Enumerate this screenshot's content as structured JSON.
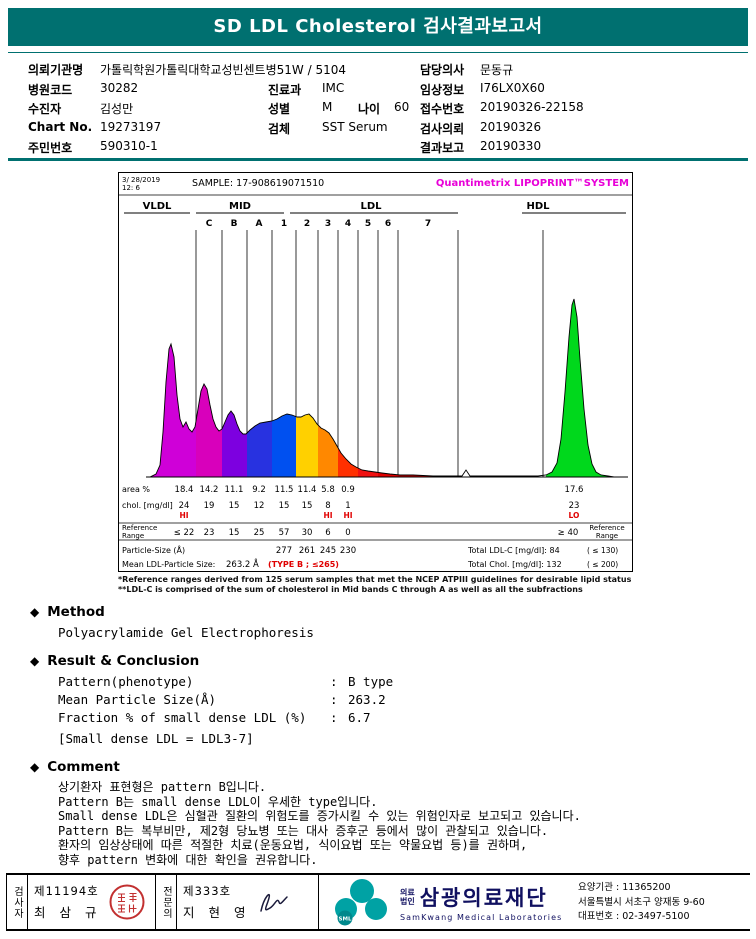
{
  "header": {
    "title": "SD LDL Cholesterol 검사결과보고서"
  },
  "info": {
    "fields": [
      {
        "id": "org",
        "label": "의뢰기관명",
        "value": "가톨릭학원가톨릭대학교성빈센트병51W / 5104"
      },
      {
        "id": "hospital_code",
        "label": "병원코드",
        "value": "30282"
      },
      {
        "id": "patient",
        "label": "수진자",
        "value": "김성만"
      },
      {
        "id": "chart_no",
        "label": "Chart No.",
        "value": "19273197"
      },
      {
        "id": "resident_no",
        "label": "주민번호",
        "value": "590310-1"
      },
      {
        "id": "dept",
        "label": "진료과",
        "value": "IMC"
      },
      {
        "id": "sex",
        "label": "성별",
        "value": "M"
      },
      {
        "id": "age",
        "label": "나이",
        "value": "60"
      },
      {
        "id": "specimen",
        "label": "검체",
        "value": "SST Serum"
      },
      {
        "id": "doctor",
        "label": "담당의사",
        "value": "문동규"
      },
      {
        "id": "clinical_info",
        "label": "임상정보",
        "value": "I76LX0X60"
      },
      {
        "id": "receipt_no",
        "label": "접수번호",
        "value": "20190326-22158"
      },
      {
        "id": "request_date",
        "label": "검사의뢰",
        "value": "20190326"
      },
      {
        "id": "report_date",
        "label": "결과보고",
        "value": "20190330"
      }
    ]
  },
  "chart": {
    "datetime_line1": "3/ 28/2019",
    "datetime_line2": "12: 6",
    "sample_label": "SAMPLE:",
    "sample_value": "17-908619071510",
    "brand": "Quantimetrix LIPOPRINT™SYSTEM",
    "bands": {
      "groups": [
        "VLDL",
        "MID",
        "LDL",
        "HDL"
      ],
      "mid_sub": [
        "C",
        "B",
        "A"
      ],
      "ldl_sub": [
        "1",
        "2",
        "3",
        "4",
        "5",
        "6",
        "7"
      ]
    },
    "rows": {
      "area_label": "area %",
      "area_values": [
        "18.4",
        "14.2",
        "11.1",
        "9.2",
        "11.5",
        "11.4",
        "5.8",
        "0.9"
      ],
      "area_hdl": "17.6",
      "chol_label": "chol. [mg/dl]",
      "chol_values": [
        "24",
        "19",
        "15",
        "12",
        "15",
        "15",
        "8",
        "1"
      ],
      "chol_hdl": "23",
      "chol_flags": [
        "HI",
        "",
        "",
        "",
        "",
        "",
        "HI",
        "HI"
      ],
      "chol_hdl_flag": "LO",
      "ref_label": "Reference Range",
      "ref_values": [
        "≤ 22",
        "23",
        "15",
        "25",
        "57",
        "30",
        "6",
        "0"
      ],
      "ref_hdl": "≥ 40",
      "particle_label": "Particle-Size (Å)",
      "particle_values": [
        "277",
        "261",
        "245",
        "230"
      ],
      "mean_label": "Mean LDL-Particle Size:",
      "mean_value": "263.2 Å",
      "mean_flag": "(TYPE B ; ≤265)",
      "total_ldl": "Total LDL-C [mg/dl]: 84",
      "total_ldl_ref": "( ≤ 130)",
      "total_chol": "Total Chol. [mg/dl]: 132",
      "total_chol_ref": "( ≤ 200)"
    },
    "footnote1": "*Reference ranges derived from 125 serum samples that met the NCEP ATPIII guidelines for desirable lipid status",
    "footnote2": "**LDL-C is comprised of the sum of cholesterol in Mid bands C through A as well as all the subfractions"
  },
  "method": {
    "title": "Method",
    "text": "Polyacrylamide Gel Electrophoresis"
  },
  "result": {
    "title": "Result & Conclusion",
    "items": [
      {
        "name": "Pattern(phenotype)",
        "value": "B type"
      },
      {
        "name": "Mean Particle Size(Å)",
        "value": "263.2"
      },
      {
        "name": "Fraction % of small dense LDL (%)",
        "value": "6.7"
      }
    ],
    "note": "[Small dense LDL = LDL3-7]"
  },
  "comment": {
    "title": "Comment",
    "lines": [
      "상기환자 표현형은 pattern B입니다.",
      "Pattern B는 small dense LDL이 우세한 type입니다.",
      "Small dense LDL은 심혈관 질환의 위험도를 증가시킬 수 있는 위험인자로 보고되고 있습니다.",
      "Pattern B는 복부비만, 제2형 당뇨병 또는 대사 증후군 등에서 많이 관찰되고 있습니다.",
      "환자의 임상상태에 따른 적절한 치료(운동요법, 식이요법 또는 약물요법 등)를 권하며,",
      "향후 pattern 변화에 대한 확인을 권유합니다."
    ]
  },
  "footer": {
    "examiner_title": "검사자",
    "examiner_no": "제11194호",
    "examiner_name": "최 삼 규",
    "specialist_title": "전문의",
    "specialist_no": "제333호",
    "specialist_name": "지 현 영",
    "org_prefix1": "의료",
    "org_prefix2": "법인",
    "org_name": "삼광의료재단",
    "org_name_en": "SamKwang Medical Laboratories",
    "logo_text": "SML",
    "care_org": "요양기관 : 11365200",
    "address": "서울특별시 서초구 양재동 9-60",
    "phone": "대표번호 : 02-3497-5100"
  }
}
